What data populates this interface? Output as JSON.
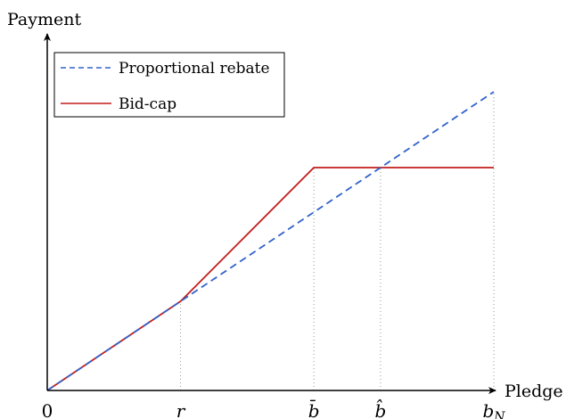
{
  "chart_data": {
    "type": "line",
    "title": "",
    "xlabel": "Pledge",
    "ylabel": "Payment",
    "grid": false,
    "legend_position": "top-left",
    "x_ticks": [
      {
        "x": 0,
        "label": "0"
      },
      {
        "x": 1,
        "label": "r"
      },
      {
        "x": 2,
        "label": "b̄"
      },
      {
        "x": 2.5,
        "label": "b̂"
      },
      {
        "x": 3.35,
        "label": "b_N"
      }
    ],
    "xlim": [
      0,
      3.35
    ],
    "ylim": [
      0,
      3.35
    ],
    "series": [
      {
        "name": "Proportional rebate",
        "style": "dashed",
        "color": "#3162cc",
        "points": [
          [
            0,
            0
          ],
          [
            1,
            1
          ],
          [
            3.35,
            3.35
          ]
        ]
      },
      {
        "name": "Bid-cap",
        "style": "solid",
        "color": "#c21c1c",
        "points": [
          [
            0,
            0
          ],
          [
            1,
            1
          ],
          [
            2,
            2.5
          ],
          [
            3.35,
            2.5
          ]
        ]
      }
    ],
    "guides": [
      {
        "x": 1,
        "y": 1
      },
      {
        "x": 2,
        "y": 2.5
      },
      {
        "x": 2.5,
        "y": 2.5
      },
      {
        "x": 3.35,
        "y": 3.35
      }
    ]
  }
}
